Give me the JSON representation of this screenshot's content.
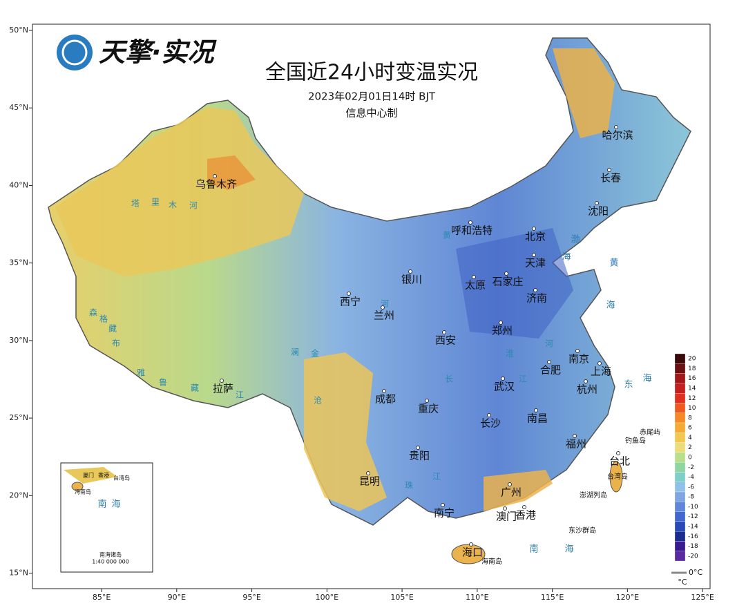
{
  "logo": "天擎·实况",
  "title": "全国近24小时变温实况",
  "subtitle": "2023年02月01日14时 BJT",
  "source": "信息中心制",
  "map": {
    "xlim": [
      80.4,
      125.5
    ],
    "ylim": [
      14.0,
      50.4
    ],
    "xticks": [
      {
        "value": 85,
        "label": "85°E"
      },
      {
        "value": 90,
        "label": "90°E"
      },
      {
        "value": 95,
        "label": "95°E"
      },
      {
        "value": 100,
        "label": "100°E"
      },
      {
        "value": 105,
        "label": "105°E"
      },
      {
        "value": 110,
        "label": "110°E"
      },
      {
        "value": 115,
        "label": "115°E"
      },
      {
        "value": 120,
        "label": "120°E"
      },
      {
        "value": 125,
        "label": "125°E"
      }
    ],
    "yticks": [
      {
        "value": 15,
        "label": "15°N"
      },
      {
        "value": 20,
        "label": "20°N"
      },
      {
        "value": 25,
        "label": "25°N"
      },
      {
        "value": 30,
        "label": "30°N"
      },
      {
        "value": 35,
        "label": "35°N"
      },
      {
        "value": 40,
        "label": "40°N"
      },
      {
        "value": 45,
        "label": "45°N"
      },
      {
        "value": 50,
        "label": "50°N"
      }
    ]
  },
  "cities": [
    "乌鲁木齐",
    "呼和浩特",
    "北京",
    "天津",
    "石家庄",
    "太原",
    "济南",
    "银川",
    "西宁",
    "兰州",
    "郑州",
    "西安",
    "拉萨",
    "成都",
    "重庆",
    "武汉",
    "合肥",
    "南京",
    "上海",
    "杭州",
    "长沙",
    "南昌",
    "福州",
    "贵阳",
    "昆明",
    "南宁",
    "广州",
    "澳门",
    "香港",
    "海口",
    "台北",
    "哈尔滨",
    "长春",
    "沈阳"
  ],
  "geo_labels": [
    "渤",
    "海",
    "黄",
    "海",
    "东",
    "海",
    "南",
    "海",
    "赤尾屿",
    "钓鱼岛",
    "台湾岛",
    "澎湖列岛",
    "东沙群岛",
    "海南岛",
    "塔",
    "里",
    "木",
    "河",
    "雅",
    "鲁",
    "藏",
    "江",
    "森",
    "格",
    "藏",
    "布",
    "黄",
    "河",
    "澜",
    "金",
    "沧",
    "长",
    "江",
    "江",
    "珠",
    "淮",
    "河"
  ],
  "inset": {
    "labels": [
      "厦门",
      "香港",
      "台湾岛",
      "海南岛",
      "南",
      "海",
      "南海诸岛",
      "1:40 000 000"
    ]
  },
  "legend": {
    "levels": [
      20,
      18,
      16,
      14,
      12,
      10,
      8,
      6,
      4,
      2,
      0,
      -2,
      -4,
      -6,
      -8,
      -10,
      -12,
      -14,
      -16,
      -18,
      -20
    ],
    "colors": [
      "#3a0a0a",
      "#6b1010",
      "#a01818",
      "#c42020",
      "#e03020",
      "#f05a20",
      "#f58a25",
      "#f5aa35",
      "#f3c850",
      "#eddc7a",
      "#b8e08a",
      "#8fd6a0",
      "#7fcfc8",
      "#8ec0e8",
      "#7fa6e0",
      "#5f86d8",
      "#4068d0",
      "#2a4ab8",
      "#1a2e90",
      "#3a1a90",
      "#5a2aa0"
    ],
    "contour_label": "0°C",
    "unit": "°C"
  }
}
